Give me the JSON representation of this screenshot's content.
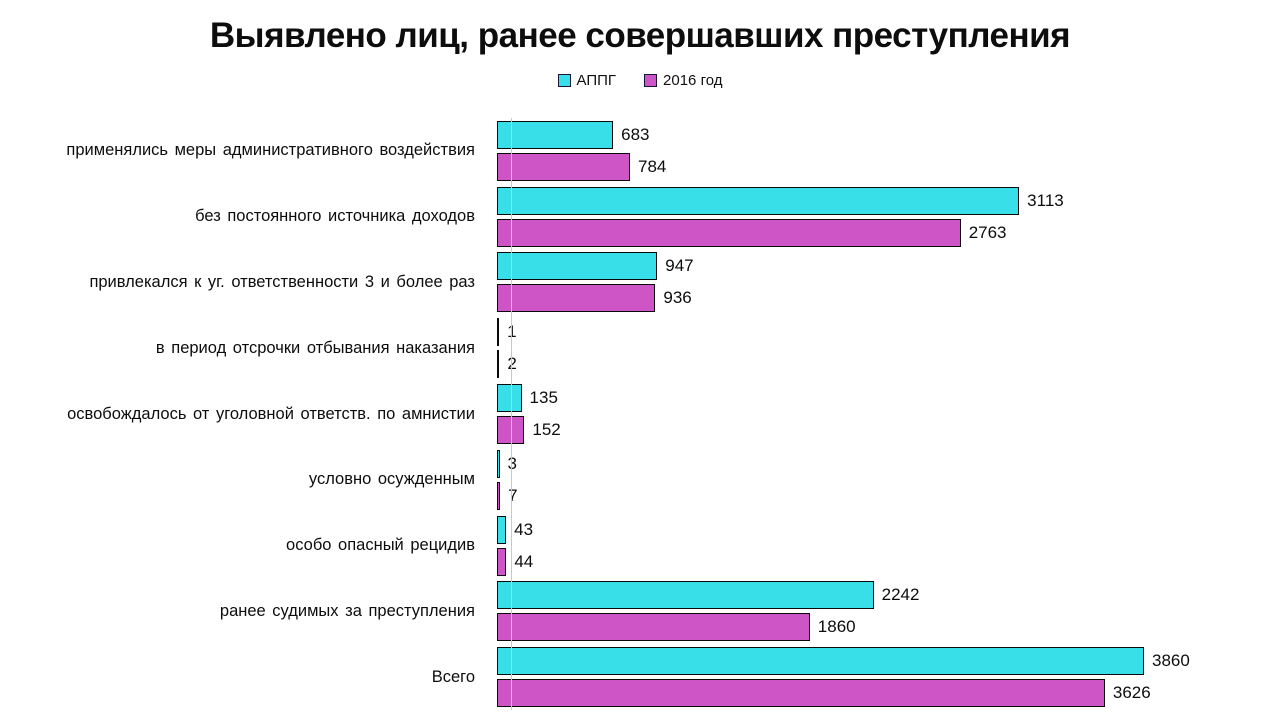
{
  "title": "Выявлено лиц, ранее совершавших преступления",
  "legend": {
    "items": [
      {
        "label": "АППГ",
        "color": "#38dee8"
      },
      {
        "label": "2016 год",
        "color": "#cd55c6"
      }
    ]
  },
  "chart_data": {
    "type": "bar",
    "orientation": "horizontal",
    "title": "Выявлено лиц, ранее совершавших преступления",
    "categories": [
      "применялись меры административного  воздействия",
      "без постоянного источника доходов",
      "привлекался к уг. ответственности  3 и более раз",
      "в период отсрочки отбывания наказания",
      "освобождалось от уголовной ответств. по амнистии",
      "условно осужденным",
      "особо опасный рецидив",
      "ранее судимых за преступления",
      "Всего"
    ],
    "series": [
      {
        "name": "АППГ",
        "color": "#38dee8",
        "values": [
          683,
          3113,
          947,
          1,
          135,
          3,
          43,
          2242,
          3860
        ]
      },
      {
        "name": "2016 год",
        "color": "#cd55c6",
        "values": [
          784,
          2763,
          936,
          2,
          152,
          7,
          44,
          1860,
          3626
        ]
      }
    ],
    "data_labels": true,
    "xlim": [
      0,
      3900
    ],
    "grid": false,
    "legend_position": "top",
    "bar_border_color": "#0a0a0a",
    "axis_line_color": "#c9c9c9"
  }
}
